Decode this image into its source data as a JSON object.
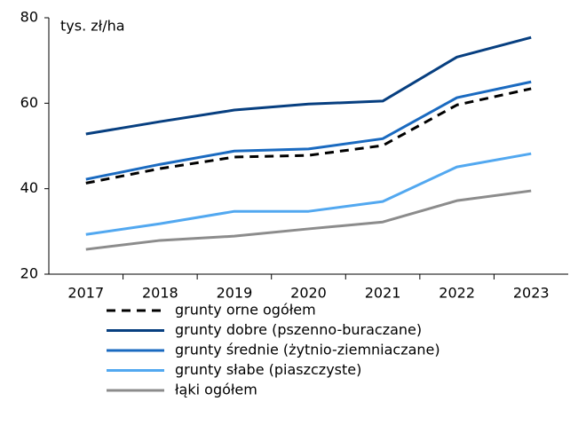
{
  "chart_data": {
    "type": "line",
    "y_label": "tys. zł/ha",
    "categories": [
      "2017",
      "2018",
      "2019",
      "2020",
      "2021",
      "2022",
      "2023"
    ],
    "series": [
      {
        "name": "grunty orne ogółem",
        "color": "#000000",
        "dashed": true,
        "values": [
          41.3,
          44.7,
          47.4,
          47.8,
          50.1,
          59.6,
          63.4
        ]
      },
      {
        "name": "grunty dobre (pszenno-buraczane)",
        "color": "#073f80",
        "values": [
          52.8,
          55.7,
          58.4,
          59.8,
          60.5,
          70.8,
          75.4
        ]
      },
      {
        "name": "grunty średnie (żytnio-ziemniaczane)",
        "color": "#1a6ac0",
        "values": [
          42.2,
          45.7,
          48.8,
          49.3,
          51.7,
          61.3,
          65.0
        ]
      },
      {
        "name": "grunty słabe (piaszczyste)",
        "color": "#52a8f0",
        "values": [
          29.3,
          31.8,
          34.7,
          34.7,
          37.0,
          45.1,
          48.2
        ]
      },
      {
        "name": "łąki ogółem",
        "color": "#8c8c8c",
        "values": [
          25.8,
          27.9,
          28.9,
          30.6,
          32.2,
          37.2,
          39.5
        ]
      }
    ],
    "ylim": [
      20,
      80
    ],
    "yticks": [
      20,
      40,
      60,
      80
    ],
    "grid": false
  }
}
